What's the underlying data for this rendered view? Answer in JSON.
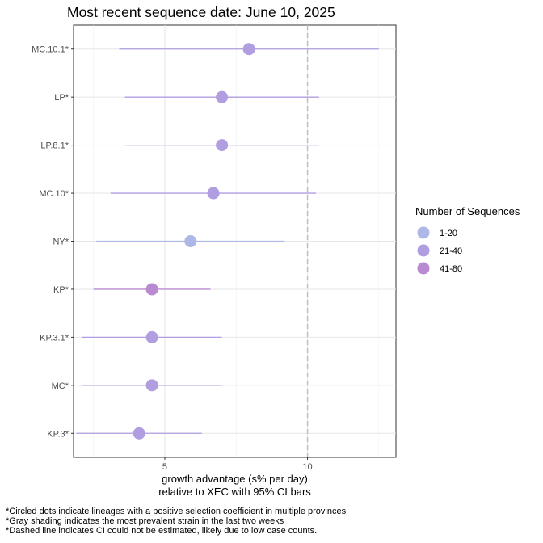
{
  "chart_data": {
    "type": "scatter",
    "title": "Most recent sequence date: June 10, 2025",
    "xlabel_line1": "growth advantage (s% per day)",
    "xlabel_line2": "relative to  XEC  with 95% CI bars",
    "xlim": [
      1.8,
      13.1
    ],
    "x_ticks": [
      5,
      10
    ],
    "grid": true,
    "reference_line_x": 10,
    "legend": {
      "title": "Number of Sequences",
      "placement": "right",
      "items": [
        {
          "label": "1-20",
          "color": "#adb8e6"
        },
        {
          "label": "21-40",
          "color": "#b09ee0"
        },
        {
          "label": "41-80",
          "color": "#b98ad1"
        }
      ]
    },
    "points": [
      {
        "lineage": "MC.10.1*",
        "value": 7.95,
        "ci_low": 3.4,
        "ci_high": 12.5,
        "group": "21-40"
      },
      {
        "lineage": "LP*",
        "value": 7.0,
        "ci_low": 3.6,
        "ci_high": 10.4,
        "group": "21-40"
      },
      {
        "lineage": "LP.8.1*",
        "value": 7.0,
        "ci_low": 3.6,
        "ci_high": 10.4,
        "group": "21-40"
      },
      {
        "lineage": "MC.10*",
        "value": 6.7,
        "ci_low": 3.1,
        "ci_high": 10.3,
        "group": "21-40"
      },
      {
        "lineage": "NY*",
        "value": 5.9,
        "ci_low": 2.6,
        "ci_high": 9.2,
        "group": "1-20"
      },
      {
        "lineage": "KP*",
        "value": 4.55,
        "ci_low": 2.5,
        "ci_high": 6.6,
        "group": "41-80"
      },
      {
        "lineage": "KP.3.1*",
        "value": 4.55,
        "ci_low": 2.1,
        "ci_high": 7.0,
        "group": "21-40"
      },
      {
        "lineage": "MC*",
        "value": 4.55,
        "ci_low": 2.1,
        "ci_high": 7.0,
        "group": "21-40"
      },
      {
        "lineage": "KP.3*",
        "value": 4.1,
        "ci_low": 1.9,
        "ci_high": 6.3,
        "group": "21-40"
      }
    ]
  },
  "footnotes": [
    "*Circled dots indicate lineages with a positive selection coefficient in multiple provinces",
    "*Gray shading indicates the most prevalent strain in the last two weeks",
    "*Dashed line indicates CI could not be estimated, likely due to low case counts."
  ]
}
